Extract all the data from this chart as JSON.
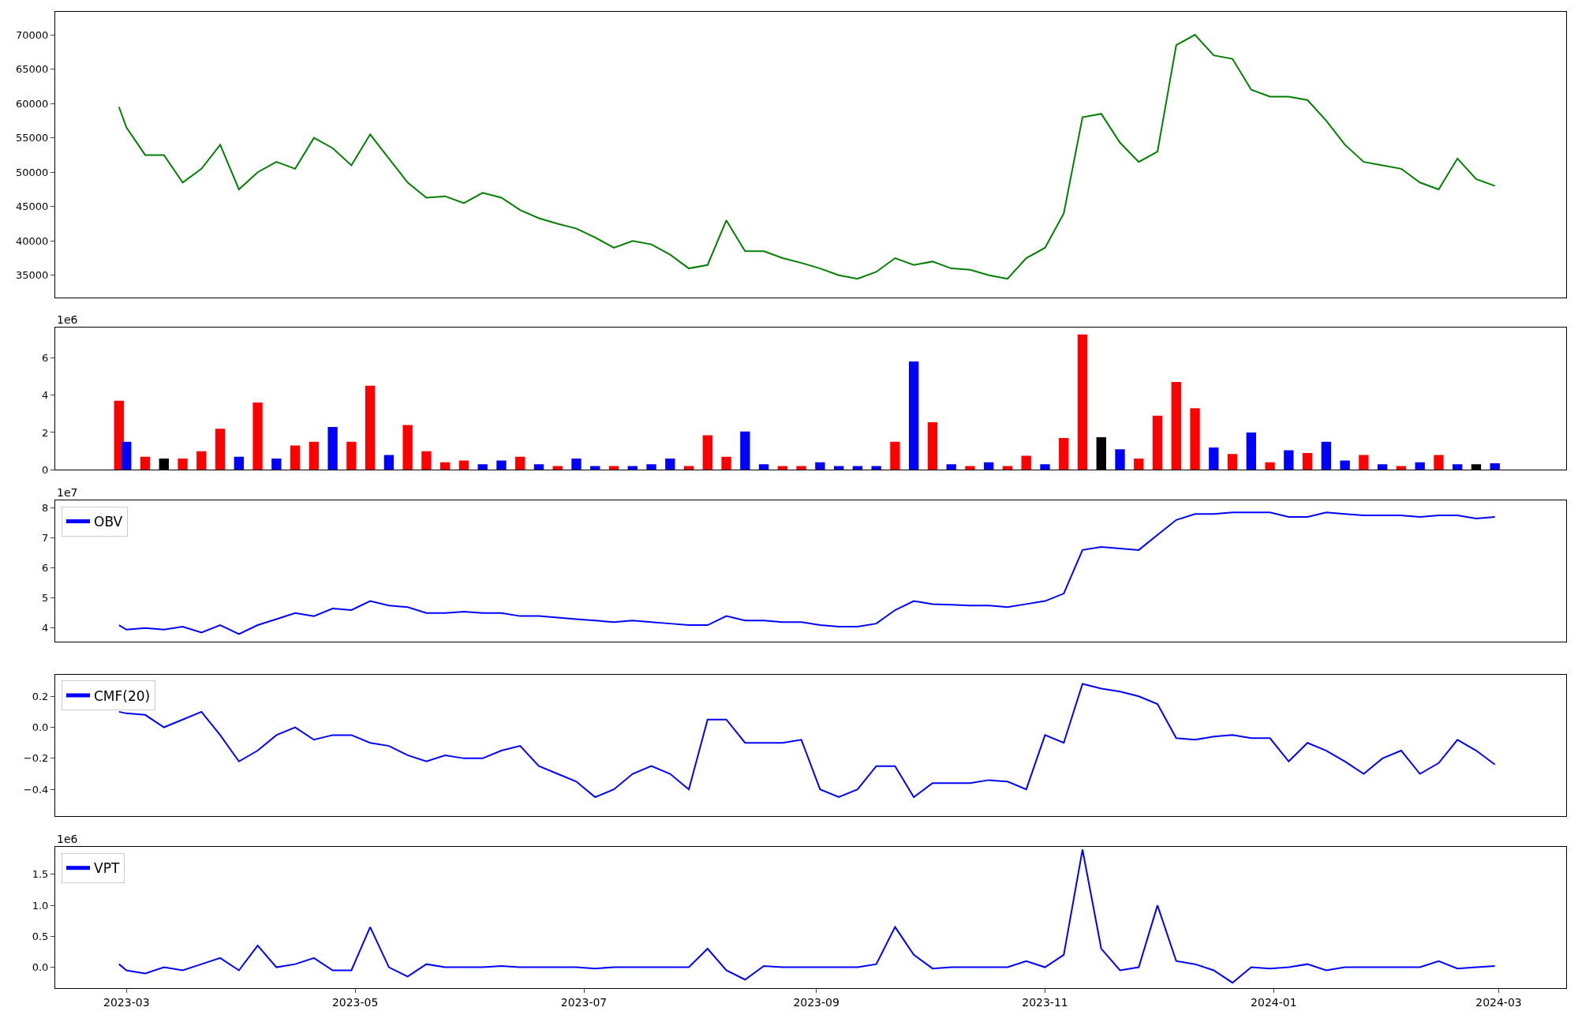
{
  "chart_data": [
    {
      "type": "line",
      "x": [
        "2023-02-27",
        "2023-03-01",
        "2023-03-06",
        "2023-03-11",
        "2023-03-16",
        "2023-03-21",
        "2023-03-26",
        "2023-03-31",
        "2023-04-05",
        "2023-04-10",
        "2023-04-15",
        "2023-04-20",
        "2023-04-25",
        "2023-04-30",
        "2023-05-05",
        "2023-05-10",
        "2023-05-15",
        "2023-05-20",
        "2023-05-25",
        "2023-05-30",
        "2023-06-04",
        "2023-06-09",
        "2023-06-14",
        "2023-06-19",
        "2023-06-24",
        "2023-06-29",
        "2023-07-04",
        "2023-07-09",
        "2023-07-14",
        "2023-07-19",
        "2023-07-24",
        "2023-07-29",
        "2023-08-03",
        "2023-08-08",
        "2023-08-13",
        "2023-08-18",
        "2023-08-23",
        "2023-08-28",
        "2023-09-02",
        "2023-09-07",
        "2023-09-12",
        "2023-09-17",
        "2023-09-22",
        "2023-09-27",
        "2023-10-02",
        "2023-10-07",
        "2023-10-12",
        "2023-10-17",
        "2023-10-22",
        "2023-10-27",
        "2023-11-01",
        "2023-11-06",
        "2023-11-11",
        "2023-11-16",
        "2023-11-21",
        "2023-11-26",
        "2023-12-01",
        "2023-12-06",
        "2023-12-11",
        "2023-12-16",
        "2023-12-21",
        "2023-12-26",
        "2023-12-31",
        "2024-01-05",
        "2024-01-10",
        "2024-01-15",
        "2024-01-20",
        "2024-01-25",
        "2024-01-30",
        "2024-02-04",
        "2024-02-09",
        "2024-02-14",
        "2024-02-19",
        "2024-02-24",
        "2024-02-29"
      ],
      "series": [
        {
          "color": "#008000",
          "values": [
            59500,
            56500,
            52500,
            52500,
            48500,
            50500,
            54000,
            47500,
            50000,
            51500,
            50500,
            55000,
            53500,
            51000,
            55500,
            52000,
            48500,
            46300,
            46500,
            45500,
            47000,
            46300,
            44500,
            43300,
            42500,
            41800,
            40500,
            39000,
            40000,
            39500,
            38000,
            36000,
            36500,
            43000,
            38500,
            38500,
            37500,
            36800,
            36000,
            35000,
            34500,
            35500,
            37500,
            36500,
            37000,
            36000,
            35800,
            35000,
            34500,
            37500,
            39000,
            44000,
            58000,
            58500,
            54300,
            51500,
            53000,
            68500,
            70000,
            67000,
            66500,
            62000,
            61000,
            61000,
            60500,
            57500,
            54000,
            51500,
            51000,
            50500,
            48500,
            47500,
            52000,
            49000,
            48000
          ]
        }
      ],
      "xlim": [
        "2023-02-10",
        "2024-03-19"
      ],
      "ylim": [
        31800,
        73350
      ],
      "yticks": [
        35000,
        40000,
        45000,
        50000,
        55000,
        60000,
        65000,
        70000
      ],
      "tick_labels": "y"
    },
    {
      "type": "bar",
      "annotations": [
        "1e6"
      ],
      "x": [
        "2023-02-27",
        "2023-03-01",
        "2023-03-06",
        "2023-03-11",
        "2023-03-16",
        "2023-03-21",
        "2023-03-26",
        "2023-03-31",
        "2023-04-05",
        "2023-04-10",
        "2023-04-15",
        "2023-04-20",
        "2023-04-25",
        "2023-04-30",
        "2023-05-05",
        "2023-05-10",
        "2023-05-15",
        "2023-05-20",
        "2023-05-25",
        "2023-05-30",
        "2023-06-04",
        "2023-06-09",
        "2023-06-14",
        "2023-06-19",
        "2023-06-24",
        "2023-06-29",
        "2023-07-04",
        "2023-07-09",
        "2023-07-14",
        "2023-07-19",
        "2023-07-24",
        "2023-07-29",
        "2023-08-03",
        "2023-08-08",
        "2023-08-13",
        "2023-08-18",
        "2023-08-23",
        "2023-08-28",
        "2023-09-02",
        "2023-09-07",
        "2023-09-12",
        "2023-09-17",
        "2023-09-22",
        "2023-09-27",
        "2023-10-02",
        "2023-10-07",
        "2023-10-12",
        "2023-10-17",
        "2023-10-22",
        "2023-10-27",
        "2023-11-01",
        "2023-11-06",
        "2023-11-11",
        "2023-11-16",
        "2023-11-21",
        "2023-11-26",
        "2023-12-01",
        "2023-12-06",
        "2023-12-11",
        "2023-12-16",
        "2023-12-21",
        "2023-12-26",
        "2023-12-31",
        "2024-01-05",
        "2024-01-10",
        "2024-01-15",
        "2024-01-20",
        "2024-01-25",
        "2024-01-30",
        "2024-02-04",
        "2024-02-09",
        "2024-02-14",
        "2024-02-19",
        "2024-02-24",
        "2024-02-29"
      ],
      "values": [
        3.7,
        1.5,
        0.7,
        0.6,
        0.6,
        1.0,
        2.2,
        0.7,
        3.6,
        0.6,
        1.3,
        1.5,
        2.3,
        1.5,
        4.5,
        0.8,
        2.4,
        1.0,
        0.4,
        0.5,
        0.3,
        0.5,
        0.7,
        0.3,
        0.2,
        0.6,
        0.2,
        0.2,
        0.2,
        0.3,
        0.6,
        0.2,
        1.85,
        0.7,
        2.05,
        0.3,
        0.2,
        0.2,
        0.4,
        0.2,
        0.2,
        0.2,
        1.5,
        5.8,
        2.55,
        0.3,
        0.2,
        0.4,
        0.2,
        0.75,
        0.3,
        1.7,
        7.25,
        1.75,
        1.1,
        0.6,
        2.9,
        4.7,
        3.3,
        1.2,
        0.85,
        2.0,
        0.4,
        1.05,
        0.9,
        1.5,
        0.5,
        0.8,
        0.3,
        0.2,
        0.4,
        0.8,
        0.3,
        0.3,
        0.35
      ],
      "colors": [
        "#ff0000",
        "#0000ff",
        "#ff0000",
        "#000000",
        "#ff0000",
        "#ff0000",
        "#ff0000",
        "#0000ff",
        "#ff0000",
        "#0000ff",
        "#ff0000",
        "#ff0000",
        "#0000ff",
        "#ff0000",
        "#ff0000",
        "#0000ff",
        "#ff0000",
        "#ff0000",
        "#ff0000",
        "#ff0000",
        "#0000ff",
        "#0000ff",
        "#ff0000",
        "#0000ff",
        "#ff0000",
        "#0000ff",
        "#0000ff",
        "#ff0000",
        "#0000ff",
        "#0000ff",
        "#0000ff",
        "#ff0000",
        "#ff0000",
        "#ff0000",
        "#0000ff",
        "#0000ff",
        "#ff0000",
        "#ff0000",
        "#0000ff",
        "#0000ff",
        "#0000ff",
        "#0000ff",
        "#ff0000",
        "#0000ff",
        "#ff0000",
        "#0000ff",
        "#ff0000",
        "#0000ff",
        "#ff0000",
        "#ff0000",
        "#0000ff",
        "#ff0000",
        "#ff0000",
        "#000000",
        "#0000ff",
        "#ff0000",
        "#ff0000",
        "#ff0000",
        "#ff0000",
        "#0000ff",
        "#ff0000",
        "#0000ff",
        "#ff0000",
        "#0000ff",
        "#ff0000",
        "#0000ff",
        "#0000ff",
        "#ff0000",
        "#0000ff",
        "#ff0000",
        "#0000ff",
        "#ff0000",
        "#0000ff",
        "#000000",
        "#0000ff"
      ],
      "xlim": [
        "2023-02-10",
        "2024-03-19"
      ],
      "ylim": [
        0,
        7.6
      ],
      "yticks": [
        0,
        2,
        4,
        6
      ],
      "tick_labels": "y"
    },
    {
      "type": "line",
      "annotations": [
        "1e7"
      ],
      "legend": "top left",
      "x": [
        "2023-02-27",
        "2023-03-01",
        "2023-03-06",
        "2023-03-11",
        "2023-03-16",
        "2023-03-21",
        "2023-03-26",
        "2023-03-31",
        "2023-04-05",
        "2023-04-10",
        "2023-04-15",
        "2023-04-20",
        "2023-04-25",
        "2023-04-30",
        "2023-05-05",
        "2023-05-10",
        "2023-05-15",
        "2023-05-20",
        "2023-05-25",
        "2023-05-30",
        "2023-06-04",
        "2023-06-09",
        "2023-06-14",
        "2023-06-19",
        "2023-06-24",
        "2023-06-29",
        "2023-07-04",
        "2023-07-09",
        "2023-07-14",
        "2023-07-19",
        "2023-07-24",
        "2023-07-29",
        "2023-08-03",
        "2023-08-08",
        "2023-08-13",
        "2023-08-18",
        "2023-08-23",
        "2023-08-28",
        "2023-09-02",
        "2023-09-07",
        "2023-09-12",
        "2023-09-17",
        "2023-09-22",
        "2023-09-27",
        "2023-10-02",
        "2023-10-07",
        "2023-10-12",
        "2023-10-17",
        "2023-10-22",
        "2023-10-27",
        "2023-11-01",
        "2023-11-06",
        "2023-11-11",
        "2023-11-16",
        "2023-11-21",
        "2023-11-26",
        "2023-12-01",
        "2023-12-06",
        "2023-12-11",
        "2023-12-16",
        "2023-12-21",
        "2023-12-26",
        "2023-12-31",
        "2024-01-05",
        "2024-01-10",
        "2024-01-15",
        "2024-01-20",
        "2024-01-25",
        "2024-01-30",
        "2024-02-04",
        "2024-02-09",
        "2024-02-14",
        "2024-02-19",
        "2024-02-24",
        "2024-02-29"
      ],
      "series": [
        {
          "name": "OBV",
          "color": "#0000ff",
          "values": [
            4.1,
            3.95,
            4.0,
            3.95,
            4.05,
            3.85,
            4.1,
            3.8,
            4.1,
            4.3,
            4.5,
            4.4,
            4.65,
            4.6,
            4.9,
            4.75,
            4.7,
            4.5,
            4.5,
            4.55,
            4.5,
            4.5,
            4.4,
            4.4,
            4.35,
            4.3,
            4.25,
            4.2,
            4.25,
            4.2,
            4.15,
            4.1,
            4.1,
            4.4,
            4.25,
            4.25,
            4.2,
            4.2,
            4.1,
            4.05,
            4.05,
            4.15,
            4.6,
            4.9,
            4.8,
            4.78,
            4.75,
            4.75,
            4.7,
            4.8,
            4.9,
            5.15,
            6.6,
            6.7,
            6.65,
            6.6,
            7.1,
            7.6,
            7.8,
            7.8,
            7.85,
            7.85,
            7.85,
            7.7,
            7.7,
            7.85,
            7.8,
            7.75,
            7.75,
            7.75,
            7.7,
            7.75,
            7.75,
            7.65,
            7.7
          ]
        }
      ],
      "xlim": [
        "2023-02-10",
        "2024-03-19"
      ],
      "ylim": [
        3.55,
        8.25
      ],
      "yticks": [
        4,
        5,
        6,
        7,
        8
      ],
      "tick_labels": "y"
    },
    {
      "type": "line",
      "legend": "top left",
      "x": [
        "2023-02-27",
        "2023-03-01",
        "2023-03-06",
        "2023-03-11",
        "2023-03-16",
        "2023-03-21",
        "2023-03-26",
        "2023-03-31",
        "2023-04-05",
        "2023-04-10",
        "2023-04-15",
        "2023-04-20",
        "2023-04-25",
        "2023-04-30",
        "2023-05-05",
        "2023-05-10",
        "2023-05-15",
        "2023-05-20",
        "2023-05-25",
        "2023-05-30",
        "2023-06-04",
        "2023-06-09",
        "2023-06-14",
        "2023-06-19",
        "2023-06-24",
        "2023-06-29",
        "2023-07-04",
        "2023-07-09",
        "2023-07-14",
        "2023-07-19",
        "2023-07-24",
        "2023-07-29",
        "2023-08-03",
        "2023-08-08",
        "2023-08-13",
        "2023-08-18",
        "2023-08-23",
        "2023-08-28",
        "2023-09-02",
        "2023-09-07",
        "2023-09-12",
        "2023-09-17",
        "2023-09-22",
        "2023-09-27",
        "2023-10-02",
        "2023-10-07",
        "2023-10-12",
        "2023-10-17",
        "2023-10-22",
        "2023-10-27",
        "2023-11-01",
        "2023-11-06",
        "2023-11-11",
        "2023-11-16",
        "2023-11-21",
        "2023-11-26",
        "2023-12-01",
        "2023-12-06",
        "2023-12-11",
        "2023-12-16",
        "2023-12-21",
        "2023-12-26",
        "2023-12-31",
        "2024-01-05",
        "2024-01-10",
        "2024-01-15",
        "2024-01-20",
        "2024-01-25",
        "2024-01-30",
        "2024-02-04",
        "2024-02-09",
        "2024-02-14",
        "2024-02-19",
        "2024-02-24",
        "2024-02-29"
      ],
      "series": [
        {
          "name": "CMF(20)",
          "color": "#0000ff",
          "values": [
            0.1,
            0.09,
            0.08,
            0.0,
            0.05,
            0.1,
            -0.05,
            -0.22,
            -0.15,
            -0.05,
            0.0,
            -0.08,
            -0.05,
            -0.05,
            -0.1,
            -0.12,
            -0.18,
            -0.22,
            -0.18,
            -0.2,
            -0.2,
            -0.15,
            -0.12,
            -0.25,
            -0.3,
            -0.35,
            -0.45,
            -0.4,
            -0.3,
            -0.25,
            -0.3,
            -0.4,
            0.05,
            0.05,
            -0.1,
            -0.1,
            -0.1,
            -0.08,
            -0.4,
            -0.45,
            -0.4,
            -0.25,
            -0.25,
            -0.45,
            -0.36,
            -0.36,
            -0.36,
            -0.34,
            -0.35,
            -0.4,
            -0.05,
            -0.1,
            0.28,
            0.25,
            0.23,
            0.2,
            0.15,
            -0.07,
            -0.08,
            -0.06,
            -0.05,
            -0.07,
            -0.07,
            -0.22,
            -0.1,
            -0.15,
            -0.22,
            -0.3,
            -0.2,
            -0.15,
            -0.3,
            -0.23,
            -0.08,
            -0.15,
            -0.24
          ]
        }
      ],
      "xlim": [
        "2023-02-10",
        "2024-03-19"
      ],
      "ylim": [
        -0.57,
        0.34
      ],
      "yticks": [
        {
          "value": -0.4,
          "label": "−0.4"
        },
        {
          "value": -0.2,
          "label": "−0.2"
        },
        {
          "value": 0,
          "label": "0.0"
        },
        {
          "value": 0.2,
          "label": "0.2"
        }
      ],
      "tick_labels": "y"
    },
    {
      "type": "line",
      "annotations": [
        "1e6"
      ],
      "legend": "top left",
      "x": [
        "2023-02-27",
        "2023-03-01",
        "2023-03-06",
        "2023-03-11",
        "2023-03-16",
        "2023-03-21",
        "2023-03-26",
        "2023-03-31",
        "2023-04-05",
        "2023-04-10",
        "2023-04-15",
        "2023-04-20",
        "2023-04-25",
        "2023-04-30",
        "2023-05-05",
        "2023-05-10",
        "2023-05-15",
        "2023-05-20",
        "2023-05-25",
        "2023-05-30",
        "2023-06-04",
        "2023-06-09",
        "2023-06-14",
        "2023-06-19",
        "2023-06-24",
        "2023-06-29",
        "2023-07-04",
        "2023-07-09",
        "2023-07-14",
        "2023-07-19",
        "2023-07-24",
        "2023-07-29",
        "2023-08-03",
        "2023-08-08",
        "2023-08-13",
        "2023-08-18",
        "2023-08-23",
        "2023-08-28",
        "2023-09-02",
        "2023-09-07",
        "2023-09-12",
        "2023-09-17",
        "2023-09-22",
        "2023-09-27",
        "2023-10-02",
        "2023-10-07",
        "2023-10-12",
        "2023-10-17",
        "2023-10-22",
        "2023-10-27",
        "2023-11-01",
        "2023-11-06",
        "2023-11-11",
        "2023-11-16",
        "2023-11-21",
        "2023-11-26",
        "2023-12-01",
        "2023-12-06",
        "2023-12-11",
        "2023-12-16",
        "2023-12-21",
        "2023-12-26",
        "2023-12-31",
        "2024-01-05",
        "2024-01-10",
        "2024-01-15",
        "2024-01-20",
        "2024-01-25",
        "2024-01-30",
        "2024-02-04",
        "2024-02-09",
        "2024-02-14",
        "2024-02-19",
        "2024-02-24",
        "2024-02-29"
      ],
      "series": [
        {
          "name": "VPT",
          "color": "#0000ff",
          "values": [
            0.05,
            -0.05,
            -0.1,
            0.0,
            -0.05,
            0.05,
            0.15,
            -0.05,
            0.35,
            0.0,
            0.05,
            0.15,
            -0.05,
            -0.05,
            0.65,
            0.0,
            -0.15,
            0.05,
            0.0,
            0.0,
            0.0,
            0.02,
            0.0,
            0.0,
            0.0,
            0.0,
            -0.02,
            0.0,
            0.0,
            0.0,
            0.0,
            0.0,
            0.3,
            -0.05,
            -0.2,
            0.02,
            0.0,
            0.0,
            0.0,
            0.0,
            0.0,
            0.05,
            0.65,
            0.2,
            -0.02,
            0.0,
            0.0,
            0.0,
            0.0,
            0.1,
            0.0,
            0.2,
            1.9,
            0.3,
            -0.05,
            0.0,
            1.0,
            0.1,
            0.05,
            -0.05,
            -0.25,
            0.0,
            -0.02,
            0.0,
            0.05,
            -0.05,
            0.0,
            0.0,
            0.0,
            0.0,
            0.0,
            0.1,
            -0.02,
            0.0,
            0.02
          ]
        }
      ],
      "xlim": [
        "2023-02-10",
        "2024-03-19"
      ],
      "ylim": [
        -0.34,
        1.94
      ],
      "yticks": [
        {
          "value": 0,
          "label": "0.0"
        },
        {
          "value": 0.5,
          "label": "0.5"
        },
        {
          "value": 1,
          "label": "1.0"
        },
        {
          "value": 1.5,
          "label": "1.5"
        }
      ],
      "xticks": [
        "2023-03",
        "2023-05",
        "2023-07",
        "2023-09",
        "2023-11",
        "2024-01",
        "2024-03"
      ]
    }
  ]
}
